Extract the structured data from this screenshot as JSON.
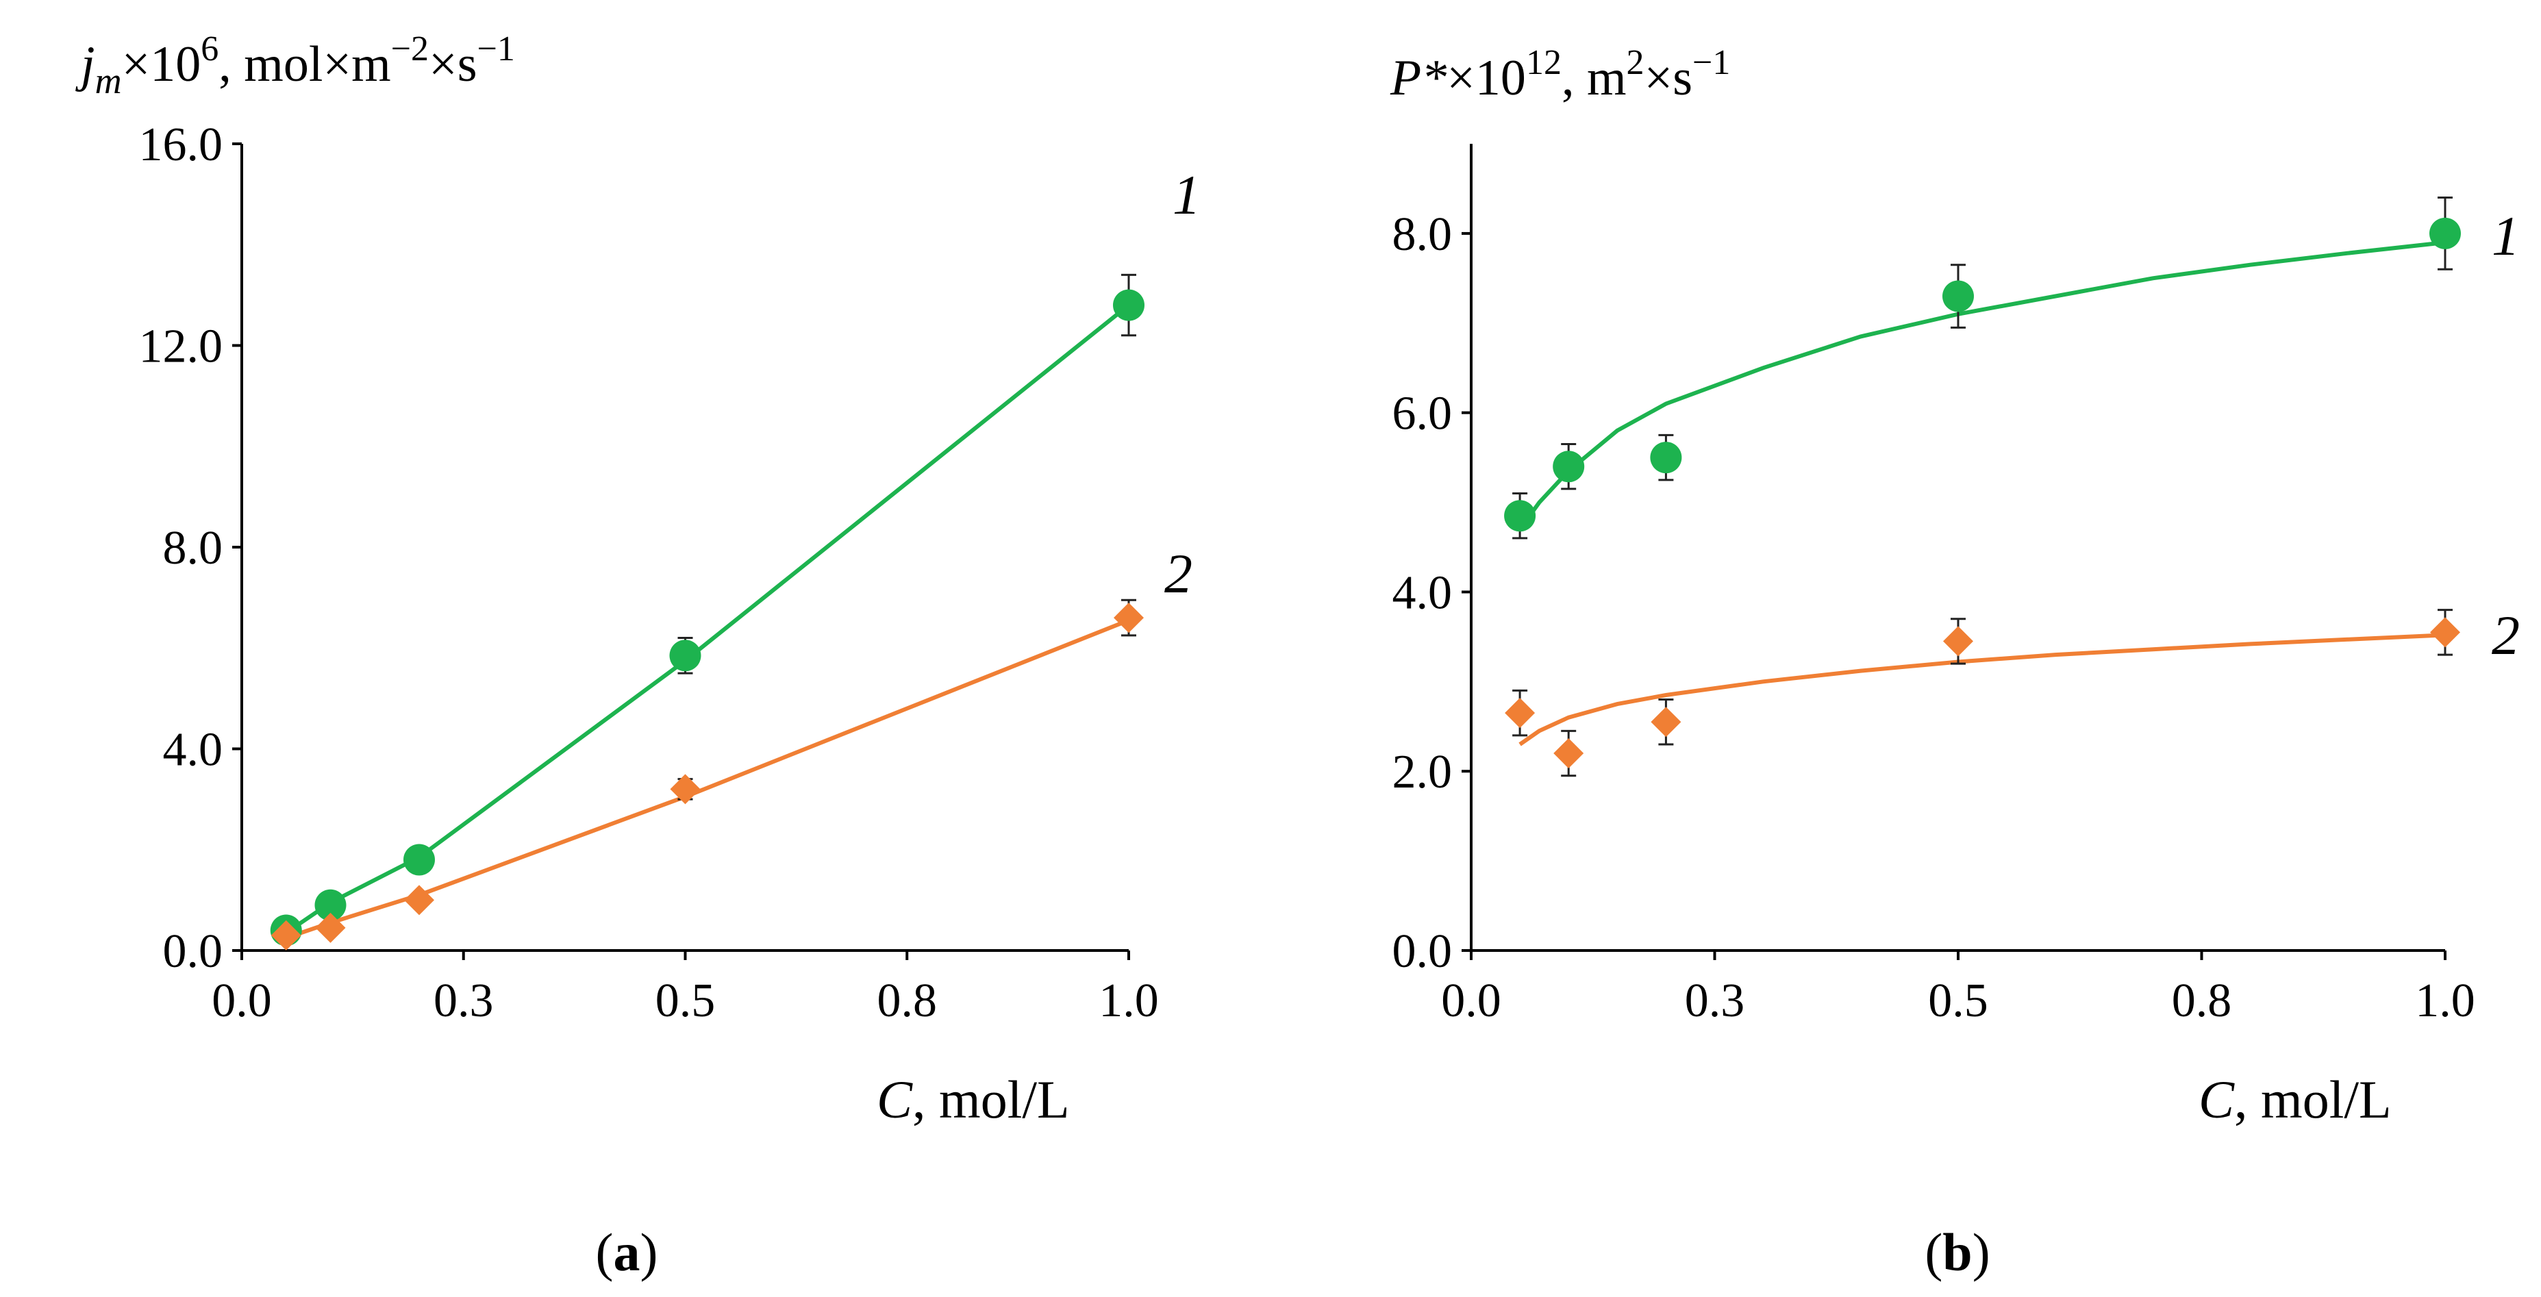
{
  "colors": {
    "series1": "#1db34f",
    "series2": "#f07f34",
    "errorbar": "#222222"
  },
  "chart_data": [
    {
      "type": "scatter",
      "panel": "(a)",
      "panel_label_bold": "a",
      "ylabel": {
        "prefix": "j",
        "sub": "m",
        "mid": "×10",
        "exp": "6",
        "unit": ", mol×m",
        "unit_exp": "−2",
        "unit_mid": "×s",
        "unit_exp2": "−1"
      },
      "xlabel": {
        "var": "C",
        "unit": ", mol/L"
      },
      "xlim": [
        0.0,
        1.0
      ],
      "ylim": [
        0.0,
        16.0
      ],
      "xticks": [
        0.0,
        0.25,
        0.5,
        0.75,
        1.0
      ],
      "xtick_labels": [
        "0.0",
        "0.3",
        "0.5",
        "0.8",
        "1.0"
      ],
      "yticks": [
        0.0,
        4.0,
        8.0,
        12.0,
        16.0
      ],
      "ytick_labels": [
        "0.0",
        "4.0",
        "8.0",
        "12.0",
        "16.0"
      ],
      "series": [
        {
          "name": "1",
          "color": "#1db34f",
          "marker": "circle",
          "x": [
            0.05,
            0.1,
            0.2,
            0.5,
            1.0
          ],
          "y": [
            0.4,
            0.9,
            1.8,
            5.85,
            12.8
          ],
          "err": [
            0.0,
            0.0,
            0.0,
            0.35,
            0.6
          ],
          "fit": {
            "x": [
              0.05,
              0.1,
              0.2,
              0.5,
              1.0
            ],
            "y": [
              0.35,
              0.95,
              1.85,
              5.75,
              12.8
            ]
          }
        },
        {
          "name": "2",
          "color": "#f07f34",
          "marker": "diamond",
          "x": [
            0.05,
            0.1,
            0.2,
            0.5,
            1.0
          ],
          "y": [
            0.3,
            0.45,
            1.0,
            3.2,
            6.6
          ],
          "err": [
            0.0,
            0.0,
            0.0,
            0.2,
            0.35
          ],
          "fit": {
            "x": [
              0.05,
              0.1,
              0.2,
              0.5,
              1.0
            ],
            "y": [
              0.25,
              0.55,
              1.1,
              3.05,
              6.55
            ]
          }
        }
      ]
    },
    {
      "type": "scatter",
      "panel": "(b)",
      "panel_label_bold": "b",
      "ylabel": {
        "prefix": "P*",
        "mid": "×10",
        "exp": "12",
        "unit": ", m",
        "unit_exp": "2",
        "unit_mid": "×s",
        "unit_exp2": "−1"
      },
      "xlabel": {
        "var": "C",
        "unit": ", mol/L"
      },
      "xlim": [
        0.0,
        1.0
      ],
      "ylim": [
        0.0,
        9.0
      ],
      "xticks": [
        0.0,
        0.25,
        0.5,
        0.75,
        1.0
      ],
      "xtick_labels": [
        "0.0",
        "0.3",
        "0.5",
        "0.8",
        "1.0"
      ],
      "yticks": [
        0.0,
        2.0,
        4.0,
        6.0,
        8.0
      ],
      "ytick_labels": [
        "0.0",
        "2.0",
        "4.0",
        "6.0",
        "8.0"
      ],
      "series": [
        {
          "name": "1",
          "color": "#1db34f",
          "marker": "circle",
          "x": [
            0.05,
            0.1,
            0.2,
            0.5,
            1.0
          ],
          "y": [
            4.85,
            5.4,
            5.5,
            7.3,
            8.0
          ],
          "err": [
            0.25,
            0.25,
            0.25,
            0.35,
            0.4
          ],
          "fit": {
            "x": [
              0.05,
              0.07,
              0.1,
              0.15,
              0.2,
              0.3,
              0.4,
              0.5,
              0.6,
              0.7,
              0.8,
              0.9,
              1.0
            ],
            "y": [
              4.7,
              5.0,
              5.35,
              5.8,
              6.1,
              6.5,
              6.85,
              7.1,
              7.3,
              7.5,
              7.65,
              7.78,
              7.9
            ]
          }
        },
        {
          "name": "2",
          "color": "#f07f34",
          "marker": "diamond",
          "x": [
            0.05,
            0.1,
            0.2,
            0.5,
            1.0
          ],
          "y": [
            2.65,
            2.2,
            2.55,
            3.45,
            3.55
          ],
          "err": [
            0.25,
            0.25,
            0.25,
            0.25,
            0.25
          ],
          "fit": {
            "x": [
              0.05,
              0.07,
              0.1,
              0.15,
              0.2,
              0.3,
              0.4,
              0.5,
              0.6,
              0.7,
              0.8,
              0.9,
              1.0
            ],
            "y": [
              2.3,
              2.45,
              2.6,
              2.75,
              2.85,
              3.0,
              3.12,
              3.22,
              3.3,
              3.36,
              3.42,
              3.47,
              3.52
            ]
          }
        }
      ]
    }
  ]
}
